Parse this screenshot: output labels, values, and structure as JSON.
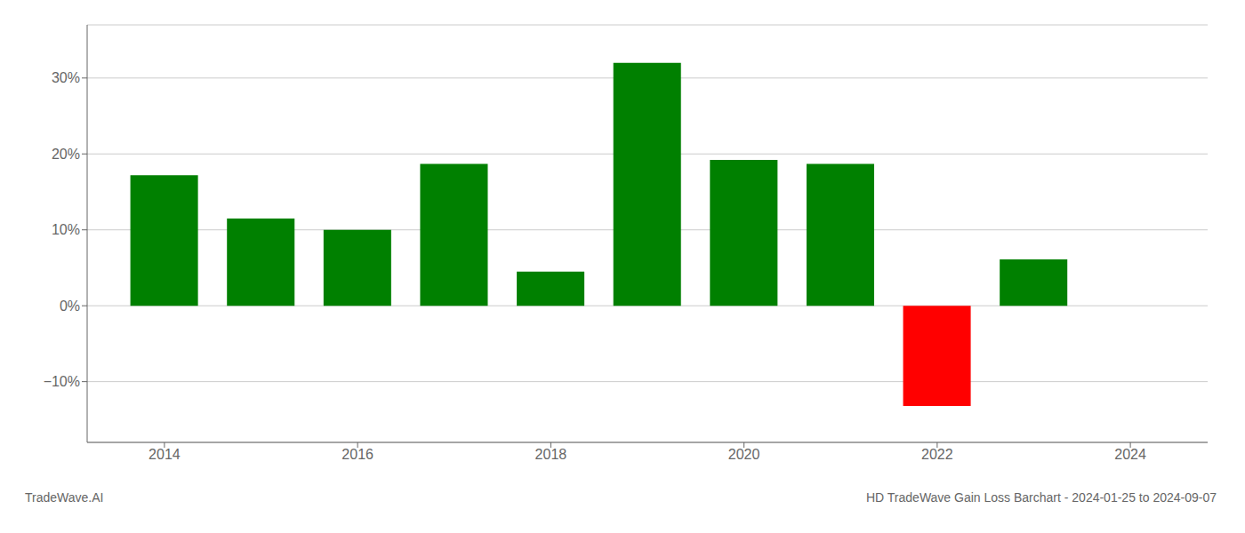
{
  "chart_data": {
    "type": "bar",
    "title": "HD TradeWave Gain Loss Barchart - 2024-01-25 to 2024-09-07",
    "annotations": [
      "TradeWave.AI"
    ],
    "x": [
      2014,
      2015,
      2016,
      2017,
      2018,
      2019,
      2020,
      2021,
      2022,
      2023
    ],
    "values": [
      17.2,
      11.5,
      10.0,
      18.7,
      4.5,
      32.0,
      19.2,
      18.7,
      -13.2,
      6.1
    ],
    "colors": [
      "#008000",
      "#008000",
      "#008000",
      "#008000",
      "#008000",
      "#008000",
      "#008000",
      "#008000",
      "#ff0000",
      "#008000"
    ],
    "xlim": [
      2013.2,
      2024.8
    ],
    "xticks": [
      2014,
      2016,
      2018,
      2020,
      2022,
      2024
    ],
    "ylim": [
      -18,
      37
    ],
    "yticks": [
      {
        "value": -10,
        "label": "−10%"
      },
      {
        "value": 0,
        "label": "0%"
      },
      {
        "value": 10,
        "label": "10%"
      },
      {
        "value": 20,
        "label": "20%"
      },
      {
        "value": 30,
        "label": "30%"
      }
    ],
    "grid": true
  }
}
